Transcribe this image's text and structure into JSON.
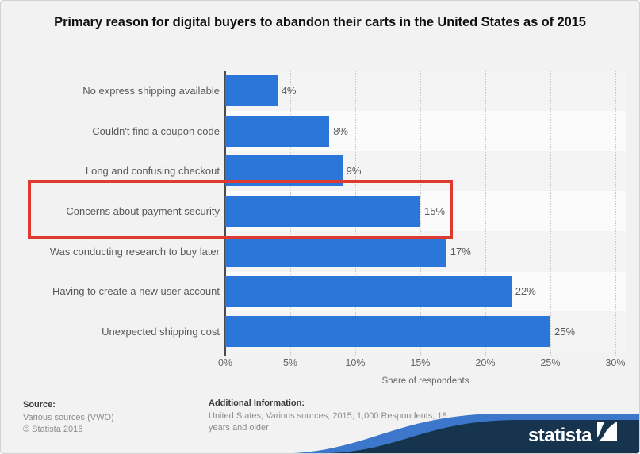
{
  "title": "Primary reason for digital buyers to abandon their carts in the United States as of 2015",
  "chart_data": {
    "type": "bar",
    "orientation": "horizontal",
    "title": "Primary reason for digital buyers to abandon their carts in the United States as of 2015",
    "categories": [
      "No express shipping available",
      "Couldn't find a coupon code",
      "Long and confusing checkout",
      "Concerns about payment security",
      "Was conducting research to buy later",
      "Having to create a new user account",
      "Unexpected shipping cost"
    ],
    "values": [
      4,
      8,
      9,
      15,
      17,
      22,
      25
    ],
    "value_labels": [
      "4%",
      "8%",
      "9%",
      "15%",
      "17%",
      "22%",
      "25%"
    ],
    "xlabel": "Share of respondents",
    "ylabel": "",
    "xlim": [
      0,
      30
    ],
    "xticks": [
      0,
      5,
      10,
      15,
      20,
      25,
      30
    ],
    "xtick_labels": [
      "0%",
      "5%",
      "10%",
      "15%",
      "20%",
      "25%",
      "30%"
    ],
    "grid": "vertical-dotted",
    "legend": "none",
    "highlighted_category": "Concerns about payment security",
    "bar_color": "#2b76d9",
    "band_colors": [
      "#f4f4f5",
      "#fbfbfc"
    ]
  },
  "annotation": {
    "type": "highlight-rectangle",
    "color": "#e0392f",
    "target": "Concerns about payment security"
  },
  "footer": {
    "source_label": "Source:",
    "source_line1": "Various sources (VWO)",
    "source_line2": "© Statista 2016",
    "additional_label": "Additional Information:",
    "additional_text": "United States; Various sources; 2015; 1,000 Respondents; 18 years and older"
  },
  "branding": {
    "logo_text": "statista",
    "banner_navy": "#17344e",
    "banner_blue": "#3d77cc"
  }
}
